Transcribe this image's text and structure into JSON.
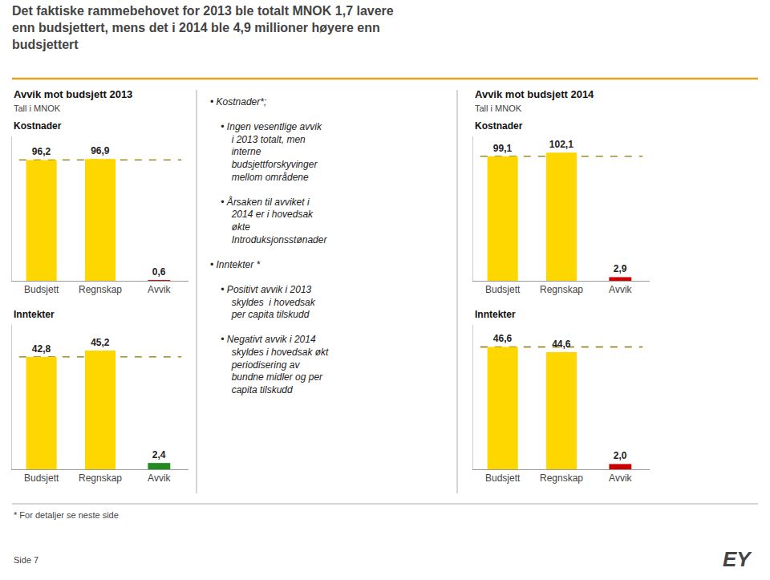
{
  "title": "Det faktiske rammebehovet for 2013 ble totalt MNOK 1,7 lavere\nenn budsjettert, mens det i 2014 ble 4,9 millioner høyere enn\nbudsjettert",
  "annotations": [
    "Avvik mot budsjett 2013",
    "Tall i MNOK",
    "Avvik mot budsjett 2014",
    "Tall i MNOK",
    "• Kostnader*;\n\n  • Ingen vesentlige avvik\n    i 2013 totalt, men\n    interne\n    budsjettforskyvinger\n    mellom områdene\n\n  • Årsaken til avviket i\n    2014 er i hovedsak\n    økte\n    Introduksjonsstønader\n\n• Inntekter *\n\n  • Positivt avvik i 2013\n    skyldes  i hovedsak\n    per capita tilskudd\n\n  • Negativt avvik i 2014\n    skyldes i hovedsak økt\n    periodisering av\n    bundne midler og per\n    capita tilskudd",
    "* For detaljer se neste side",
    "Side 7",
    "EY"
  ],
  "chart_data": [
    {
      "type": "bar",
      "title": "Kostnader",
      "categories": [
        "Budsjett",
        "Regnskap",
        "Avvik"
      ],
      "values": [
        96.2,
        96.9,
        0.6
      ],
      "value_labels": [
        "96,2",
        "96,9",
        "0,6"
      ],
      "colors": [
        "#FFD700",
        "#FFD700",
        "#CC0000"
      ],
      "reference_line": 96.2,
      "ylim": [
        0,
        115
      ],
      "tick_labels": "x",
      "data_labels": true,
      "grid": false
    },
    {
      "type": "bar",
      "title": "Inntekter",
      "categories": [
        "Budsjett",
        "Regnskap",
        "Avvik"
      ],
      "values": [
        42.8,
        45.2,
        2.4
      ],
      "value_labels": [
        "42,8",
        "45,2",
        "2,4"
      ],
      "colors": [
        "#FFD700",
        "#FFD700",
        "#228B22"
      ],
      "reference_line": 42.8,
      "ylim": [
        0,
        55
      ],
      "tick_labels": "x",
      "data_labels": true,
      "grid": false
    },
    {
      "type": "bar",
      "title": "Kostnader",
      "categories": [
        "Budsjett",
        "Regnskap",
        "Avvik"
      ],
      "values": [
        99.1,
        102.1,
        2.9
      ],
      "value_labels": [
        "99,1",
        "102,1",
        "2,9"
      ],
      "colors": [
        "#FFD700",
        "#FFD700",
        "#CC0000"
      ],
      "reference_line": 99.1,
      "ylim": [
        0,
        115
      ],
      "tick_labels": "x",
      "data_labels": true,
      "grid": false
    },
    {
      "type": "bar",
      "title": "Inntekter",
      "categories": [
        "Budsjett",
        "Regnskap",
        "Avvik"
      ],
      "values": [
        46.6,
        44.6,
        2.0
      ],
      "value_labels": [
        "46,6",
        "44,6",
        "2,0"
      ],
      "colors": [
        "#FFD700",
        "#FFD700",
        "#CC0000"
      ],
      "reference_line": 46.6,
      "ylim": [
        0,
        55
      ],
      "tick_labels": "x",
      "data_labels": true,
      "grid": false
    }
  ]
}
